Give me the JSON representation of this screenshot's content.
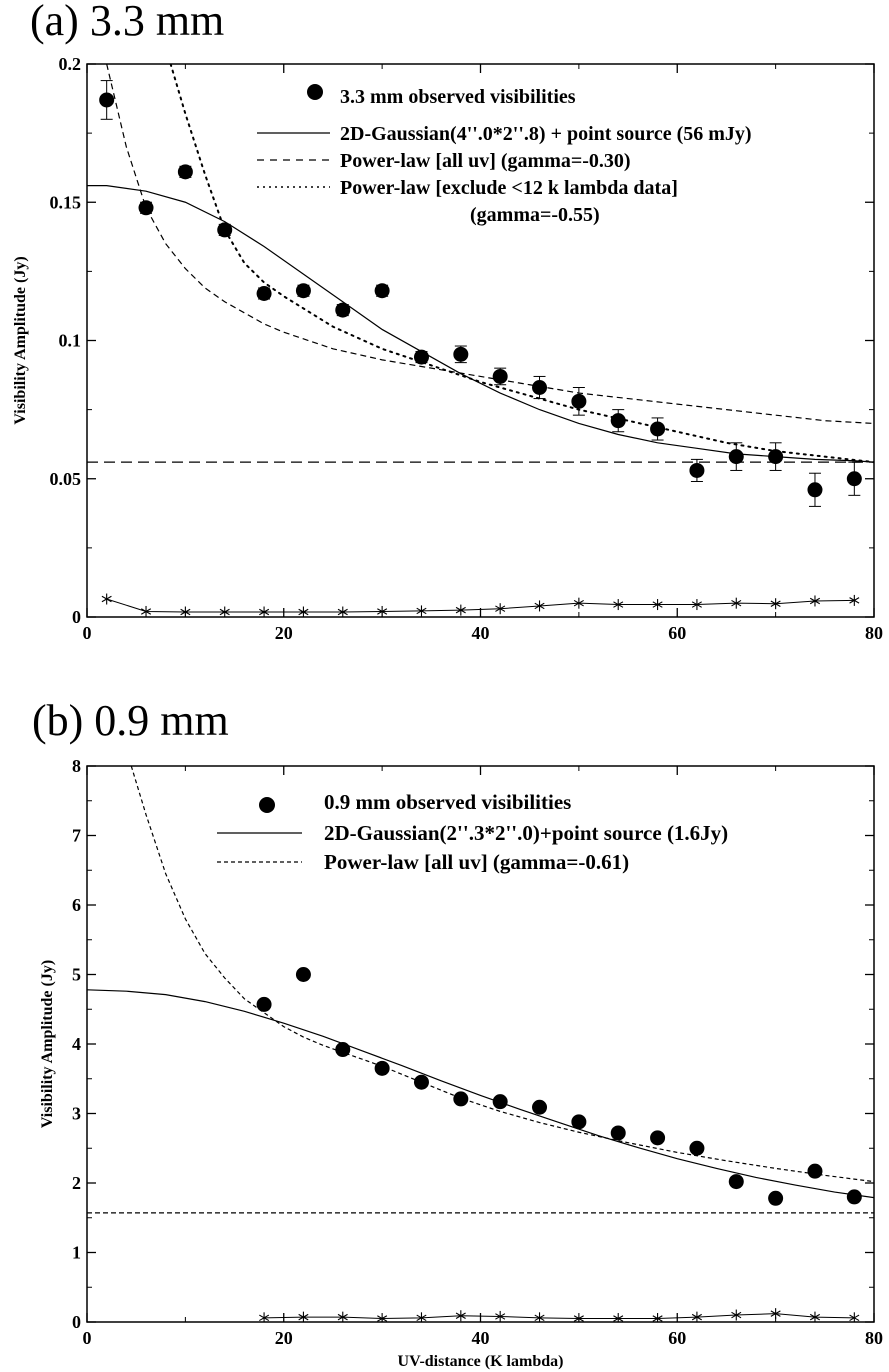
{
  "chart_data": [
    {
      "type": "scatter",
      "title": "(a) 3.3 mm",
      "xlabel": "",
      "ylabel": "Visibility Amplitude (Jy)",
      "xlim": [
        0,
        80
      ],
      "ylim": [
        0,
        0.2
      ],
      "xticks": [
        "0",
        "20",
        "40",
        "60",
        "80"
      ],
      "yticks": [
        "0",
        "0.05",
        "0.1",
        "0.15",
        "0.2"
      ],
      "legend_position": "top-right",
      "legend": [
        {
          "label": "3.3 mm observed visibilities",
          "style": "marker"
        },
        {
          "label": "2D-Gaussian(4''.0*2''.8) + point source (56 mJy)",
          "style": "solid"
        },
        {
          "label": "Power-law [all uv]  (gamma=-0.30)",
          "style": "dashed"
        },
        {
          "label": "Power-law [exclude <12 k lambda data]",
          "style": "dotted"
        },
        {
          "label": "(gamma=-0.55)",
          "style": "none"
        }
      ],
      "series": [
        {
          "name": "3.3 mm observed visibilities",
          "kind": "points",
          "x": [
            2,
            6,
            10,
            14,
            18,
            22,
            26,
            30,
            34,
            38,
            42,
            46,
            50,
            54,
            58,
            62,
            66,
            70,
            74,
            78
          ],
          "y": [
            0.187,
            0.148,
            0.161,
            0.14,
            0.117,
            0.118,
            0.111,
            0.118,
            0.094,
            0.095,
            0.087,
            0.083,
            0.078,
            0.071,
            0.068,
            0.053,
            0.058,
            0.058,
            0.046,
            0.05
          ],
          "yerr": [
            0.007,
            0.002,
            0.002,
            0.002,
            0.002,
            0.002,
            0.002,
            0.002,
            0.002,
            0.003,
            0.003,
            0.004,
            0.005,
            0.004,
            0.004,
            0.004,
            0.005,
            0.005,
            0.006,
            0.006
          ]
        },
        {
          "name": "2D-Gaussian(4''.0*2''.8) + point source (56 mJy)",
          "kind": "line-solid",
          "x": [
            0,
            2,
            6,
            10,
            14,
            18,
            22,
            26,
            30,
            34,
            38,
            42,
            46,
            50,
            54,
            58,
            62,
            66,
            70,
            74,
            78,
            80
          ],
          "y": [
            0.156,
            0.156,
            0.154,
            0.15,
            0.143,
            0.134,
            0.124,
            0.114,
            0.104,
            0.096,
            0.088,
            0.081,
            0.075,
            0.07,
            0.066,
            0.063,
            0.061,
            0.059,
            0.058,
            0.057,
            0.0565,
            0.056
          ]
        },
        {
          "name": "Power-law [all uv]  (gamma=-0.30)",
          "kind": "line-dashed",
          "x": [
            2,
            4,
            6,
            8,
            10,
            12,
            14,
            16,
            18,
            20,
            25,
            30,
            35,
            40,
            45,
            50,
            55,
            60,
            65,
            70,
            75,
            80
          ],
          "y": [
            0.2,
            0.17,
            0.148,
            0.135,
            0.126,
            0.119,
            0.114,
            0.11,
            0.106,
            0.103,
            0.097,
            0.093,
            0.09,
            0.087,
            0.084,
            0.081,
            0.079,
            0.077,
            0.075,
            0.073,
            0.071,
            0.07
          ]
        },
        {
          "name": "Power-law [exclude <12 k lambda data]",
          "kind": "line-dotted",
          "x": [
            8.5,
            10,
            12,
            14,
            16,
            18,
            20,
            25,
            30,
            35,
            40,
            45,
            50,
            55,
            60,
            65,
            70,
            75,
            80
          ],
          "y": [
            0.2,
            0.182,
            0.16,
            0.14,
            0.128,
            0.121,
            0.116,
            0.105,
            0.097,
            0.091,
            0.085,
            0.08,
            0.075,
            0.071,
            0.067,
            0.063,
            0.06,
            0.058,
            0.056
          ]
        },
        {
          "name": "",
          "kind": "line-longdash",
          "x": [
            0,
            80
          ],
          "y": [
            0.056,
            0.056
          ]
        },
        {
          "name": "",
          "kind": "star-line",
          "x": [
            2,
            6,
            10,
            14,
            18,
            22,
            26,
            30,
            34,
            38,
            42,
            46,
            50,
            54,
            58,
            62,
            66,
            70,
            74,
            78
          ],
          "y": [
            0.0065,
            0.002,
            0.0018,
            0.0018,
            0.0018,
            0.0018,
            0.0018,
            0.002,
            0.0022,
            0.0025,
            0.003,
            0.004,
            0.005,
            0.0045,
            0.0045,
            0.0045,
            0.005,
            0.0048,
            0.0058,
            0.006
          ]
        }
      ]
    },
    {
      "type": "scatter",
      "title": "(b) 0.9 mm",
      "xlabel": "UV-distance (K lambda)",
      "ylabel": "Visibility Amplitude (Jy)",
      "xlim": [
        0,
        80
      ],
      "ylim": [
        0,
        8
      ],
      "xticks": [
        "0",
        "20",
        "40",
        "60",
        "80"
      ],
      "yticks": [
        "0",
        "1",
        "2",
        "3",
        "4",
        "5",
        "6",
        "7",
        "8"
      ],
      "legend_position": "top-right",
      "legend": [
        {
          "label": "0.9 mm observed visibilities",
          "style": "marker"
        },
        {
          "label": "2D-Gaussian(2''.3*2''.0)+point source (1.6Jy)",
          "style": "solid"
        },
        {
          "label": "Power-law [all uv] (gamma=-0.61)",
          "style": "dashed"
        }
      ],
      "series": [
        {
          "name": "0.9 mm observed visibilities",
          "kind": "points",
          "x": [
            18,
            22,
            26,
            30,
            34,
            38,
            42,
            46,
            50,
            54,
            58,
            62,
            66,
            70,
            74,
            78
          ],
          "y": [
            4.57,
            5.0,
            3.92,
            3.65,
            3.45,
            3.21,
            3.17,
            3.09,
            2.88,
            2.72,
            2.65,
            2.5,
            2.02,
            1.78,
            2.17,
            1.8
          ]
        },
        {
          "name": "2D-Gaussian(2''.3*2''.0)+point source (1.6Jy)",
          "kind": "line-solid",
          "x": [
            0,
            4,
            8,
            12,
            16,
            20,
            24,
            28,
            32,
            36,
            40,
            44,
            48,
            52,
            56,
            60,
            64,
            68,
            72,
            76,
            80
          ],
          "y": [
            4.78,
            4.76,
            4.71,
            4.61,
            4.47,
            4.3,
            4.11,
            3.9,
            3.69,
            3.47,
            3.26,
            3.06,
            2.87,
            2.68,
            2.51,
            2.35,
            2.21,
            2.08,
            1.97,
            1.87,
            1.79
          ]
        },
        {
          "name": "Power-law [all uv] (gamma=-0.61)",
          "kind": "line-dashed",
          "x": [
            4.5,
            6,
            8,
            10,
            12,
            14,
            16,
            18,
            20,
            22,
            24,
            26,
            30,
            34,
            38,
            42,
            46,
            50,
            55,
            60,
            65,
            70,
            75,
            80
          ],
          "y": [
            8.0,
            7.3,
            6.45,
            5.8,
            5.3,
            4.95,
            4.65,
            4.45,
            4.25,
            4.1,
            3.98,
            3.88,
            3.68,
            3.45,
            3.22,
            3.03,
            2.87,
            2.73,
            2.58,
            2.44,
            2.32,
            2.21,
            2.11,
            2.02
          ]
        },
        {
          "name": "",
          "kind": "line-dashed-flat",
          "x": [
            0,
            80
          ],
          "y": [
            1.57,
            1.57
          ]
        },
        {
          "name": "",
          "kind": "star-line",
          "x": [
            18,
            22,
            26,
            30,
            34,
            38,
            42,
            46,
            50,
            54,
            58,
            62,
            66,
            70,
            74,
            78
          ],
          "y": [
            0.06,
            0.07,
            0.07,
            0.05,
            0.06,
            0.09,
            0.08,
            0.06,
            0.05,
            0.05,
            0.05,
            0.07,
            0.1,
            0.12,
            0.07,
            0.06
          ]
        }
      ]
    }
  ]
}
